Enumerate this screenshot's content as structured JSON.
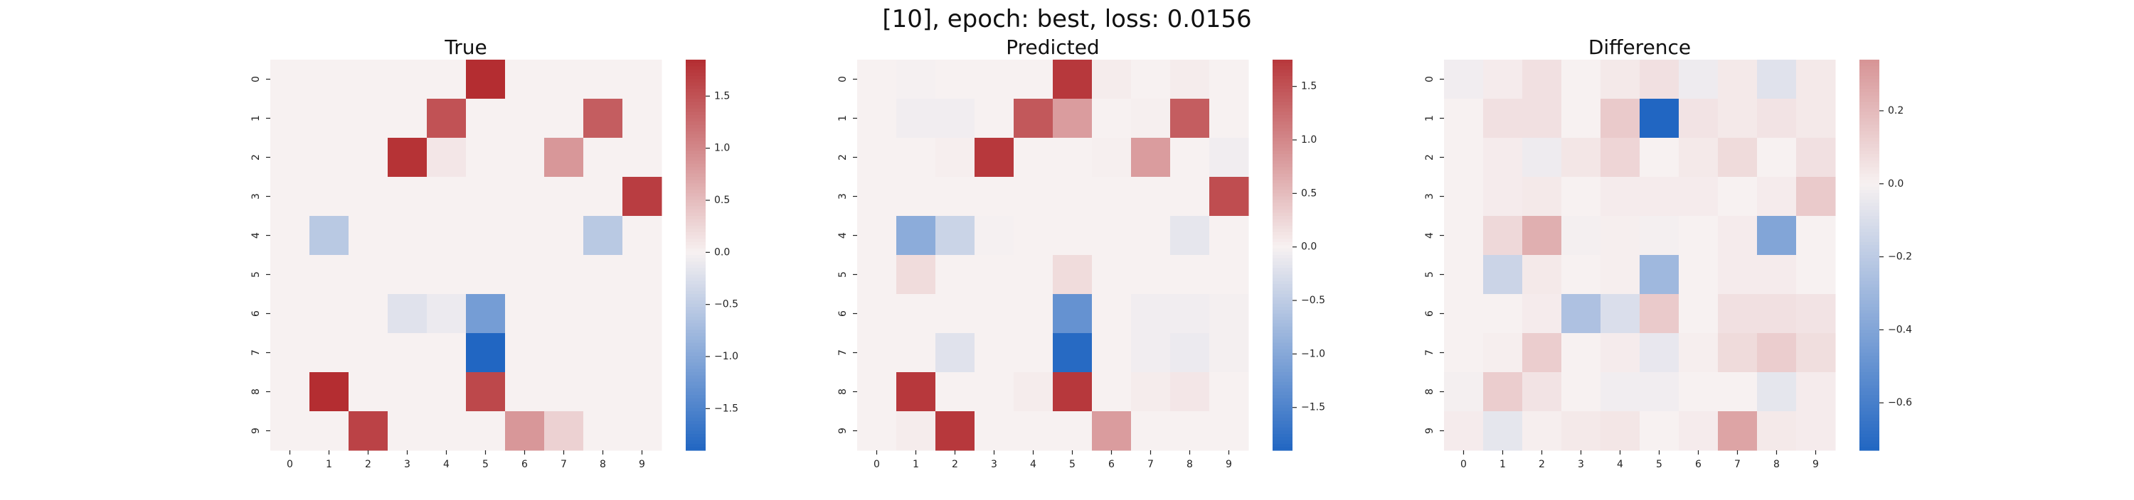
{
  "figure": {
    "suptitle": "[10], epoch: best, loss: 0.0156"
  },
  "colormap": {
    "name": "vlag",
    "low": "#2166c2",
    "mid_light": "#f7f1f1",
    "high": "#b2282c"
  },
  "chart_data": [
    {
      "type": "heatmap",
      "title": "True",
      "xticklabels": [
        "0",
        "1",
        "2",
        "3",
        "4",
        "5",
        "6",
        "7",
        "8",
        "9"
      ],
      "yticklabels": [
        "0",
        "1",
        "2",
        "3",
        "4",
        "5",
        "6",
        "7",
        "8",
        "9"
      ],
      "vmin": -1.9,
      "vmax": 1.85,
      "colorbar_ticks": [
        -1.5,
        -1.0,
        -0.5,
        0.0,
        0.5,
        1.0,
        1.5
      ],
      "colorbar_ticklabels": [
        "−1.5",
        "−1.0",
        "−0.5",
        "0.0",
        "0.5",
        "1.0",
        "1.5"
      ],
      "values": [
        [
          0,
          0,
          0,
          0,
          0,
          1.85,
          0,
          0,
          0,
          0
        ],
        [
          0,
          0,
          0,
          0,
          1.5,
          0,
          0,
          0,
          1.4,
          0
        ],
        [
          0,
          0,
          0,
          1.8,
          0.1,
          0,
          0,
          0.85,
          0,
          0
        ],
        [
          0,
          0,
          0,
          0,
          0,
          0,
          0,
          0,
          0,
          1.7
        ],
        [
          0,
          -0.55,
          0,
          0,
          0,
          0,
          0,
          0,
          -0.55,
          0
        ],
        [
          0,
          0,
          0,
          0,
          0,
          0,
          0,
          0,
          0,
          0
        ],
        [
          0,
          0,
          0,
          -0.2,
          -0.1,
          -1.15,
          0,
          0,
          0,
          0
        ],
        [
          0,
          0,
          0,
          0,
          0,
          -1.9,
          0,
          0,
          0,
          0
        ],
        [
          0,
          1.85,
          0,
          0,
          0,
          1.6,
          0,
          0,
          0,
          0
        ],
        [
          0,
          0,
          1.65,
          0,
          0,
          0,
          0.85,
          0.3,
          0,
          0
        ]
      ]
    },
    {
      "type": "heatmap",
      "title": "Predicted",
      "xticklabels": [
        "0",
        "1",
        "2",
        "3",
        "4",
        "5",
        "6",
        "7",
        "8",
        "9"
      ],
      "yticklabels": [
        "0",
        "1",
        "2",
        "3",
        "4",
        "5",
        "6",
        "7",
        "8",
        "9"
      ],
      "vmin": -1.9,
      "vmax": 1.75,
      "colorbar_ticks": [
        -1.5,
        -1.0,
        -0.5,
        0.0,
        0.5,
        1.0,
        1.5
      ],
      "colorbar_ticklabels": [
        "−1.5",
        "−1.0",
        "−0.5",
        "0.0",
        "0.5",
        "1.0",
        "1.5"
      ],
      "values": [
        [
          0,
          -0.02,
          0,
          0,
          0,
          1.75,
          0.05,
          0,
          0.05,
          0
        ],
        [
          0,
          -0.05,
          -0.05,
          0,
          1.45,
          0.8,
          0,
          0.02,
          1.4,
          0
        ],
        [
          0,
          0,
          0.03,
          1.75,
          0,
          0,
          0.02,
          0.8,
          0,
          -0.05
        ],
        [
          0,
          0,
          0,
          0,
          0,
          0,
          0,
          0,
          0,
          1.55
        ],
        [
          0,
          -0.95,
          -0.4,
          -0.02,
          0,
          0,
          0,
          0,
          -0.15,
          0
        ],
        [
          0,
          0.2,
          0,
          0,
          0,
          0.2,
          0,
          0,
          0,
          0
        ],
        [
          0,
          0,
          0,
          0,
          0,
          -1.3,
          0,
          -0.05,
          -0.05,
          -0.03
        ],
        [
          0,
          0,
          -0.2,
          0,
          0,
          -1.85,
          0,
          -0.05,
          -0.1,
          -0.03
        ],
        [
          0,
          1.75,
          0,
          0,
          0.05,
          1.75,
          0,
          0.05,
          0.1,
          0
        ],
        [
          0,
          0.05,
          1.75,
          0,
          0,
          0,
          0.8,
          0,
          0,
          0
        ]
      ]
    },
    {
      "type": "heatmap",
      "title": "Difference",
      "xticklabels": [
        "0",
        "1",
        "2",
        "3",
        "4",
        "5",
        "6",
        "7",
        "8",
        "9"
      ],
      "yticklabels": [
        "0",
        "1",
        "2",
        "3",
        "4",
        "5",
        "6",
        "7",
        "8",
        "9"
      ],
      "vmin": -0.73,
      "vmax": 0.34,
      "colorbar_ticks": [
        -0.6,
        -0.4,
        -0.2,
        0.0,
        0.2
      ],
      "colorbar_ticklabels": [
        "−0.6",
        "−0.4",
        "−0.2",
        "0.0",
        "0.2"
      ],
      "values": [
        [
          -0.02,
          0.02,
          0.06,
          0,
          0.03,
          0.06,
          -0.03,
          0.03,
          -0.08,
          0.03
        ],
        [
          0,
          0.06,
          0.06,
          0,
          0.14,
          -0.73,
          0.05,
          0.03,
          0.05,
          0.03
        ],
        [
          0,
          0.02,
          -0.03,
          0.04,
          0.1,
          0,
          0.03,
          0.08,
          0,
          0.06
        ],
        [
          0,
          0.02,
          0.03,
          0,
          0.02,
          0.02,
          0.02,
          0,
          0.02,
          0.14
        ],
        [
          0,
          0.09,
          0.24,
          -0.01,
          0.01,
          -0.01,
          0,
          0.02,
          -0.4,
          0
        ],
        [
          0,
          -0.15,
          0.03,
          0,
          0.01,
          -0.3,
          0,
          0.02,
          0.02,
          0
        ],
        [
          0,
          0,
          0.02,
          -0.25,
          -0.1,
          0.14,
          0,
          0.06,
          0.06,
          0.05
        ],
        [
          0,
          0.01,
          0.13,
          0,
          0.02,
          -0.05,
          0.01,
          0.08,
          0.13,
          0.07
        ],
        [
          -0.01,
          0.13,
          0.05,
          0,
          -0.02,
          -0.02,
          0,
          0,
          -0.06,
          0.02
        ],
        [
          0.02,
          -0.06,
          0.01,
          0.03,
          0.04,
          0,
          0.02,
          0.28,
          0.03,
          0.02
        ]
      ]
    }
  ]
}
